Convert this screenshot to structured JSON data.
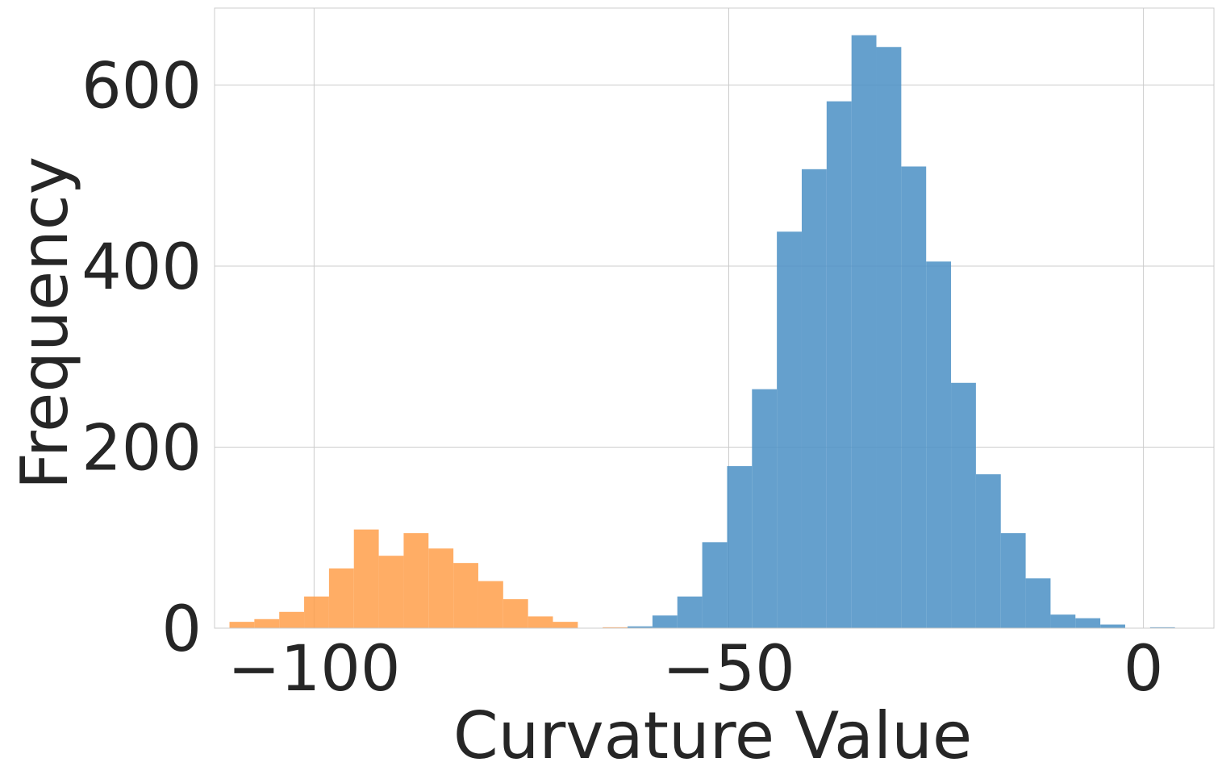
{
  "chart_data": {
    "type": "histogram",
    "title": "",
    "xlabel": "Curvature Value",
    "ylabel": "Frequency",
    "xlim": [
      -112,
      8.5
    ],
    "ylim": [
      0,
      685
    ],
    "grid": true,
    "legend": "none",
    "xticks": [
      {
        "value": -100,
        "label": "−100"
      },
      {
        "value": -50,
        "label": "−50"
      },
      {
        "value": 0,
        "label": "0"
      }
    ],
    "yticks": [
      {
        "value": 0,
        "label": "0"
      },
      {
        "value": 200,
        "label": "200"
      },
      {
        "value": 400,
        "label": "400"
      },
      {
        "value": 600,
        "label": "600"
      }
    ],
    "series": [
      {
        "color": "#ff9f4a",
        "bin_edges": [
          -110.2,
          -107.2,
          -104.2,
          -101.2,
          -98.2,
          -95.2,
          -92.2,
          -89.2,
          -86.2,
          -83.2,
          -80.2,
          -77.2,
          -74.2,
          -71.2,
          -68.2,
          -65.2,
          -62.2
        ],
        "counts": [
          7,
          10,
          18,
          35,
          66,
          109,
          80,
          105,
          88,
          72,
          52,
          32,
          13,
          7,
          0,
          1
        ]
      },
      {
        "color": "#4a8fc4",
        "bin_edges": [
          -62.2,
          -59.2,
          -56.2,
          -53.2,
          -50.2,
          -47.2,
          -44.2,
          -41.2,
          -38.2,
          -35.2,
          -32.2,
          -29.2,
          -26.2,
          -23.2,
          -20.2,
          -17.2,
          -14.2,
          -11.2,
          -8.2,
          -5.2,
          -2.2,
          0.8,
          3.8
        ],
        "counts": [
          2,
          14,
          35,
          95,
          179,
          264,
          438,
          507,
          582,
          655,
          642,
          510,
          405,
          271,
          170,
          105,
          55,
          15,
          11,
          4,
          0,
          1
        ]
      }
    ]
  }
}
